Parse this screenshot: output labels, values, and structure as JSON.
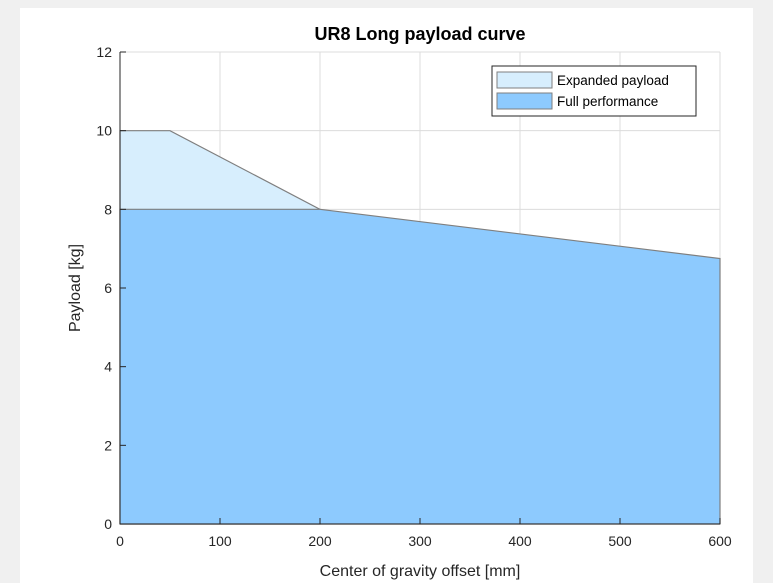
{
  "chart_data": {
    "type": "area",
    "title": "UR8 Long payload curve",
    "xlabel": "Center of gravity offset [mm]",
    "ylabel": "Payload [kg]",
    "xlim": [
      0,
      600
    ],
    "ylim": [
      0,
      12
    ],
    "xticks": [
      0,
      100,
      200,
      300,
      400,
      500,
      600
    ],
    "yticks": [
      0,
      2,
      4,
      6,
      8,
      10,
      12
    ],
    "grid": true,
    "legend_position": "top-right",
    "series": [
      {
        "name": "Expanded payload",
        "color": "#d7eefd",
        "x": [
          0,
          50,
          200
        ],
        "y": [
          10,
          10,
          8
        ]
      },
      {
        "name": "Full performance",
        "color": "#8dcafe",
        "x": [
          0,
          200,
          600
        ],
        "y": [
          8,
          8,
          6.75
        ]
      }
    ]
  }
}
